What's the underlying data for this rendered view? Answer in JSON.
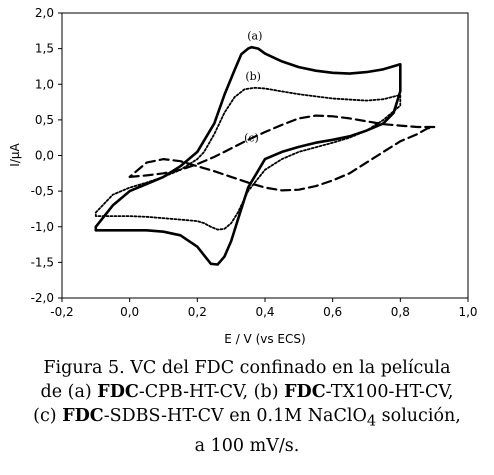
{
  "chart_data": {
    "type": "line",
    "xlabel": "E / V (vs ECS)",
    "ylabel": "I/µA",
    "xlim": [
      -0.2,
      1.0
    ],
    "ylim": [
      -2.0,
      2.0
    ],
    "x_ticks": [
      "-0,2",
      "0,0",
      "0,2",
      "0,4",
      "0,6",
      "0,8",
      "1,0"
    ],
    "x_tick_values": [
      -0.2,
      0.0,
      0.2,
      0.4,
      0.6,
      0.8,
      1.0
    ],
    "y_ticks": [
      "2,0",
      "1,5",
      "1,0",
      "0,5",
      "0,0",
      "-0,5",
      "-1,0",
      "-1,5",
      "-2,0"
    ],
    "y_tick_values": [
      2.0,
      1.5,
      1.0,
      0.5,
      0.0,
      -0.5,
      -1.0,
      -1.5,
      -2.0
    ],
    "grid": false,
    "series": [
      {
        "name": "(a)",
        "style": "solid",
        "color": "#000000",
        "x": [
          -0.1,
          -0.05,
          0.0,
          0.05,
          0.1,
          0.15,
          0.2,
          0.25,
          0.28,
          0.31,
          0.33,
          0.35,
          0.36,
          0.38,
          0.4,
          0.45,
          0.5,
          0.55,
          0.6,
          0.65,
          0.7,
          0.75,
          0.8,
          0.8,
          0.78,
          0.75,
          0.7,
          0.65,
          0.6,
          0.55,
          0.5,
          0.45,
          0.4,
          0.35,
          0.32,
          0.3,
          0.28,
          0.26,
          0.24,
          0.22,
          0.2,
          0.15,
          0.1,
          0.05,
          0.0,
          -0.05,
          -0.1,
          -0.1
        ],
        "y": [
          -1.0,
          -0.7,
          -0.5,
          -0.4,
          -0.3,
          -0.15,
          0.05,
          0.45,
          0.85,
          1.2,
          1.42,
          1.5,
          1.52,
          1.5,
          1.43,
          1.32,
          1.24,
          1.19,
          1.16,
          1.15,
          1.17,
          1.21,
          1.28,
          0.9,
          0.6,
          0.45,
          0.35,
          0.27,
          0.22,
          0.18,
          0.12,
          0.05,
          -0.05,
          -0.45,
          -0.9,
          -1.2,
          -1.42,
          -1.53,
          -1.52,
          -1.4,
          -1.28,
          -1.12,
          -1.07,
          -1.05,
          -1.05,
          -1.05,
          -1.05,
          -1.0
        ]
      },
      {
        "name": "(b)",
        "style": "dotted",
        "color": "#000000",
        "x": [
          -0.1,
          -0.05,
          0.0,
          0.05,
          0.1,
          0.15,
          0.2,
          0.22,
          0.25,
          0.28,
          0.31,
          0.34,
          0.37,
          0.4,
          0.45,
          0.5,
          0.6,
          0.7,
          0.75,
          0.8,
          0.8,
          0.75,
          0.7,
          0.65,
          0.6,
          0.5,
          0.45,
          0.4,
          0.35,
          0.32,
          0.3,
          0.28,
          0.26,
          0.24,
          0.22,
          0.2,
          0.15,
          0.1,
          0.05,
          0.0,
          -0.05,
          -0.1,
          -0.1
        ],
        "y": [
          -0.8,
          -0.55,
          -0.45,
          -0.38,
          -0.3,
          -0.2,
          -0.05,
          0.05,
          0.3,
          0.6,
          0.82,
          0.93,
          0.95,
          0.94,
          0.9,
          0.86,
          0.8,
          0.77,
          0.79,
          0.85,
          0.7,
          0.5,
          0.35,
          0.25,
          0.18,
          0.05,
          -0.05,
          -0.2,
          -0.5,
          -0.8,
          -0.95,
          -1.03,
          -1.04,
          -1.0,
          -0.95,
          -0.92,
          -0.9,
          -0.88,
          -0.86,
          -0.85,
          -0.85,
          -0.85,
          -0.8
        ]
      },
      {
        "name": "(c)",
        "style": "dashed",
        "color": "#000000",
        "x": [
          0.0,
          0.05,
          0.1,
          0.15,
          0.2,
          0.25,
          0.3,
          0.35,
          0.4,
          0.45,
          0.5,
          0.55,
          0.6,
          0.65,
          0.7,
          0.75,
          0.8,
          0.85,
          0.9,
          0.88,
          0.85,
          0.8,
          0.75,
          0.7,
          0.65,
          0.6,
          0.55,
          0.5,
          0.45,
          0.4,
          0.35,
          0.3,
          0.25,
          0.2,
          0.15,
          0.1,
          0.05,
          0.0
        ],
        "y": [
          -0.3,
          -0.28,
          -0.25,
          -0.2,
          -0.12,
          -0.02,
          0.1,
          0.22,
          0.33,
          0.43,
          0.52,
          0.56,
          0.55,
          0.52,
          0.48,
          0.44,
          0.42,
          0.4,
          0.4,
          0.38,
          0.3,
          0.2,
          0.05,
          -0.1,
          -0.25,
          -0.35,
          -0.43,
          -0.48,
          -0.49,
          -0.45,
          -0.38,
          -0.3,
          -0.22,
          -0.15,
          -0.08,
          -0.05,
          -0.1,
          -0.3
        ]
      }
    ],
    "annotations": [
      "(a)",
      "(b)",
      "(c)"
    ]
  },
  "caption": {
    "line1": "Figura 5. VC del FDC confinado en la película",
    "line2_pre": "de (a) ",
    "line2_b1": "FDC",
    "line2_mid": "-CPB-HT-CV, (b) ",
    "line2_b2": "FDC",
    "line2_post": "-TX100-HT-CV,",
    "line3_pre": "(c) ",
    "line3_b": "FDC",
    "line3_mid": "-SDBS-HT-CV en 0.1M NaClO",
    "line3_sub": "4",
    "line3_post": " solución,",
    "line4": "a 100 mV/s."
  }
}
